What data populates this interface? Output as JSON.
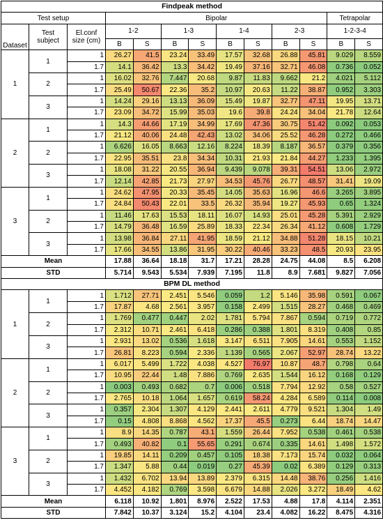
{
  "header": {
    "test_setup": "Test setup",
    "bipolar": "Bipolar",
    "tetrapolar": "Tetrapolar",
    "dataset": "Dataset",
    "test_subject": "Test subject",
    "el_conf": "El.conf size (cm)",
    "pairs": [
      "1-2",
      "1-3",
      "1-4",
      "2-3",
      "1-2-3-4"
    ],
    "sub": [
      "B",
      "S",
      "B",
      "S",
      "B",
      "S",
      "B",
      "S",
      "B",
      "S"
    ]
  },
  "heat_colors": {
    "low": "#8ccb7e",
    "mid": "#fbe983",
    "high": "#f27b6c"
  },
  "sections": [
    {
      "title": "Findpeak method",
      "datasets": [
        {
          "label": "1",
          "subjects": [
            {
              "label": "1",
              "rows": [
                {
                  "size": "1",
                  "values": [
                    26.27,
                    41.5,
                    23.24,
                    33.49,
                    17.57,
                    32.68,
                    26.88,
                    45.81,
                    9.029,
                    8.559
                  ]
                },
                {
                  "size": "1.7",
                  "values": [
                    14.1,
                    36.42,
                    13.3,
                    34.42,
                    19.49,
                    37.16,
                    32.71,
                    46.08,
                    0.736,
                    0.052
                  ]
                }
              ]
            },
            {
              "label": "2",
              "rows": [
                {
                  "size": "1",
                  "values": [
                    16.02,
                    32.76,
                    7.447,
                    20.68,
                    9.87,
                    11.83,
                    9.662,
                    21.2,
                    4.021,
                    5.112
                  ]
                },
                {
                  "size": "1.7",
                  "values": [
                    25.49,
                    50.67,
                    22.36,
                    35.2,
                    10.97,
                    20.63,
                    11.22,
                    38.87,
                    0.952,
                    3.303
                  ]
                }
              ]
            },
            {
              "label": "3",
              "rows": [
                {
                  "size": "1",
                  "values": [
                    14.24,
                    29.16,
                    13.13,
                    36.09,
                    15.49,
                    19.87,
                    32.77,
                    47.11,
                    19.95,
                    13.71
                  ]
                },
                {
                  "size": "1.7",
                  "values": [
                    23.09,
                    34.72,
                    15.99,
                    35.03,
                    19.6,
                    39.8,
                    24.24,
                    34.04,
                    21.78,
                    12.64
                  ]
                }
              ]
            }
          ]
        },
        {
          "label": "2",
          "subjects": [
            {
              "label": "1",
              "rows": [
                {
                  "size": "1",
                  "values": [
                    14.3,
                    44.66,
                    17.19,
                    34.99,
                    17.69,
                    47.36,
                    30.75,
                    51.42,
                    0.092,
                    0.053
                  ]
                },
                {
                  "size": "1.7",
                  "values": [
                    21.12,
                    40.06,
                    24.48,
                    42.43,
                    13.02,
                    34.06,
                    25.52,
                    46.28,
                    0.272,
                    0.466
                  ]
                }
              ]
            },
            {
              "label": "2",
              "rows": [
                {
                  "size": "1",
                  "values": [
                    6.626,
                    16.05,
                    8.663,
                    12.16,
                    8.224,
                    18.39,
                    8.187,
                    36.57,
                    0.379,
                    0.356
                  ]
                },
                {
                  "size": "1.7",
                  "values": [
                    22.95,
                    35.51,
                    23.8,
                    34.34,
                    10.31,
                    21.93,
                    21.84,
                    44.27,
                    1.233,
                    1.395
                  ]
                }
              ]
            },
            {
              "label": "3",
              "rows": [
                {
                  "size": "1",
                  "values": [
                    18.08,
                    31.22,
                    20.55,
                    36.94,
                    9.439,
                    9.078,
                    39.31,
                    54.51,
                    13.06,
                    2.972
                  ]
                },
                {
                  "size": "1.7",
                  "values": [
                    12.14,
                    42.85,
                    21.73,
                    27.97,
                    34.53,
                    45.76,
                    26.77,
                    48.57,
                    31.41,
                    19.09
                  ]
                }
              ]
            }
          ]
        },
        {
          "label": "3",
          "subjects": [
            {
              "label": "1",
              "rows": [
                {
                  "size": "1",
                  "values": [
                    24.62,
                    47.95,
                    20.33,
                    35.45,
                    14.05,
                    35.63,
                    16.96,
                    46.6,
                    3.265,
                    3.895
                  ]
                },
                {
                  "size": "1.7",
                  "values": [
                    24.84,
                    50.43,
                    22.01,
                    33.5,
                    26.32,
                    35.94,
                    19.27,
                    45.93,
                    0.65,
                    1.324
                  ]
                }
              ]
            },
            {
              "label": "2",
              "rows": [
                {
                  "size": "1",
                  "values": [
                    11.46,
                    17.63,
                    15.53,
                    18.11,
                    16.07,
                    14.93,
                    25.01,
                    45.28,
                    5.391,
                    2.929
                  ]
                },
                {
                  "size": "1.7",
                  "values": [
                    14.79,
                    36.48,
                    16.59,
                    25.89,
                    18.33,
                    22.34,
                    26.34,
                    41.12,
                    0.608,
                    1.729
                  ]
                }
              ]
            },
            {
              "label": "3",
              "rows": [
                {
                  "size": "1",
                  "values": [
                    13.98,
                    36.84,
                    27.11,
                    41.95,
                    18.59,
                    21.12,
                    34.88,
                    51.28,
                    18.15,
                    10.21
                  ]
                },
                {
                  "size": "1.7",
                  "values": [
                    17.66,
                    34.55,
                    13.86,
                    31.95,
                    30.22,
                    40.46,
                    33.23,
                    48.5,
                    20.93,
                    23.95
                  ]
                }
              ]
            }
          ]
        }
      ],
      "summary": [
        {
          "label": "Mean",
          "values": [
            17.88,
            36.64,
            18.18,
            31.7,
            17.21,
            28.28,
            24.75,
            44.08,
            8.5,
            6.208
          ]
        },
        {
          "label": "STD",
          "values": [
            5.714,
            9.543,
            5.534,
            7.939,
            7.195,
            11.8,
            8.9,
            7.681,
            9.827,
            7.056
          ]
        }
      ]
    },
    {
      "title": "BPM DL method",
      "datasets": [
        {
          "label": "1",
          "subjects": [
            {
              "label": "1",
              "rows": [
                {
                  "size": "1",
                  "values": [
                    1.712,
                    27.71,
                    2.451,
                    5.546,
                    0.059,
                    1.2,
                    5.146,
                    35.98,
                    0.591,
                    0.067
                  ]
                },
                {
                  "size": "1.7",
                  "values": [
                    17.87,
                    4.68,
                    2.561,
                    3.957,
                    0.158,
                    2.499,
                    1.515,
                    28.27,
                    0.468,
                    0.469
                  ]
                }
              ]
            },
            {
              "label": "2",
              "rows": [
                {
                  "size": "1",
                  "values": [
                    1.769,
                    0.477,
                    0.447,
                    2.02,
                    1.781,
                    5.794,
                    7.867,
                    0.594,
                    0.719,
                    0.772
                  ]
                },
                {
                  "size": "1.7",
                  "values": [
                    2.312,
                    10.71,
                    2.461,
                    6.418,
                    0.286,
                    0.388,
                    1.801,
                    8.319,
                    0.408,
                    0.85
                  ]
                }
              ]
            },
            {
              "label": "3",
              "rows": [
                {
                  "size": "1",
                  "values": [
                    2.931,
                    13.02,
                    0.536,
                    1.618,
                    3.147,
                    6.511,
                    7.905,
                    14.61,
                    0.553,
                    1.152
                  ]
                },
                {
                  "size": "1.7",
                  "values": [
                    26.81,
                    8.223,
                    0.594,
                    2.336,
                    1.139,
                    0.565,
                    2.067,
                    52.97,
                    28.74,
                    13.22
                  ]
                }
              ]
            }
          ]
        },
        {
          "label": "2",
          "subjects": [
            {
              "label": "1",
              "rows": [
                {
                  "size": "1",
                  "values": [
                    6.017,
                    5.499,
                    1.722,
                    4.038,
                    4.527,
                    76.97,
                    10.87,
                    48.7,
                    0.798,
                    0.64
                  ]
                },
                {
                  "size": "1.7",
                  "values": [
                    10.95,
                    22.44,
                    1.48,
                    7.886,
                    0.769,
                    2.635,
                    1.544,
                    16.12,
                    0.168,
                    0.129
                  ]
                }
              ]
            },
            {
              "label": "2",
              "rows": [
                {
                  "size": "1",
                  "values": [
                    0.003,
                    0.493,
                    0.682,
                    0.7,
                    0.006,
                    0.518,
                    7.794,
                    12.92,
                    0.58,
                    0.527
                  ]
                },
                {
                  "size": "1.7",
                  "values": [
                    2.765,
                    10.18,
                    1.064,
                    1.657,
                    0.619,
                    58.24,
                    4.284,
                    6.589,
                    0.114,
                    0.008
                  ]
                }
              ]
            },
            {
              "label": "3",
              "rows": [
                {
                  "size": "1",
                  "values": [
                    0.357,
                    2.304,
                    1.307,
                    4.129,
                    2.441,
                    2.611,
                    4.779,
                    9.521,
                    1.304,
                    1.49
                  ]
                },
                {
                  "size": "1.7",
                  "values": [
                    0.15,
                    4.808,
                    8.868,
                    4.562,
                    17.37,
                    45.5,
                    0.273,
                    6.44,
                    18.74,
                    14.47
                  ]
                }
              ]
            }
          ]
        },
        {
          "label": "3",
          "subjects": [
            {
              "label": "1",
              "rows": [
                {
                  "size": "1",
                  "values": [
                    8.9,
                    14.35,
                    0.787,
                    43.1,
                    1.559,
                    26.44,
                    7.952,
                    0.538,
                    0.461,
                    0.538
                  ]
                },
                {
                  "size": "1.7",
                  "values": [
                    0.493,
                    40.82,
                    0.1,
                    55.65,
                    0.291,
                    0.674,
                    0.335,
                    14.61,
                    1.498,
                    1.572
                  ]
                }
              ]
            },
            {
              "label": "2",
              "rows": [
                {
                  "size": "1",
                  "values": [
                    19.85,
                    14.11,
                    0.209,
                    0.457,
                    0.105,
                    18.38,
                    7.173,
                    15.74,
                    0.032,
                    0.064
                  ]
                },
                {
                  "size": "1.7",
                  "values": [
                    1.347,
                    5.88,
                    0.44,
                    0.019,
                    0.27,
                    45.39,
                    0.02,
                    6.389,
                    0.129,
                    0.313
                  ]
                }
              ]
            },
            {
              "label": "3",
              "rows": [
                {
                  "size": "1",
                  "values": [
                    1.432,
                    6.702,
                    13.94,
                    13.89,
                    2.379,
                    6.315,
                    14.48,
                    38.76,
                    0.256,
                    1.416
                  ]
                },
                {
                  "size": "1.7",
                  "values": [
                    4.452,
                    4.182,
                    0.769,
                    3.598,
                    6.679,
                    14.88,
                    2.026,
                    3.272,
                    18.49,
                    4.62
                  ]
                }
              ]
            }
          ]
        }
      ],
      "summary": [
        {
          "label": "Mean",
          "values": [
            6.118,
            10.92,
            1.801,
            8.976,
            2.522,
            17.53,
            4.88,
            17.8,
            4.114,
            2.351
          ]
        },
        {
          "label": "STD",
          "values": [
            7.842,
            10.37,
            3.124,
            15.2,
            4.104,
            23.4,
            4.082,
            16.22,
            8.475,
            4.316
          ]
        }
      ]
    }
  ]
}
